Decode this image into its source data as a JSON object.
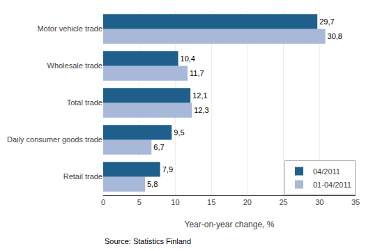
{
  "chart_data": {
    "type": "bar",
    "orientation": "horizontal",
    "categories": [
      "Retail trade",
      "Daily consumer goods trade",
      "Total trade",
      "Wholesale trade",
      "Motor vehicle trade"
    ],
    "series": [
      {
        "name": "04/2011",
        "color": "#1f5f8b",
        "values": [
          7.9,
          9.5,
          12.1,
          10.4,
          29.7
        ],
        "value_labels": [
          "7,9",
          "9,5",
          "12,1",
          "10,4",
          "29,7"
        ]
      },
      {
        "name": "01-04/2011",
        "color": "#a8b8d8",
        "values": [
          5.8,
          6.7,
          12.3,
          11.7,
          30.8
        ],
        "value_labels": [
          "5,8",
          "6,7",
          "12,3",
          "11,7",
          "30,8"
        ]
      }
    ],
    "x_label": "Year-on-year change, %",
    "xlim": [
      0,
      35
    ],
    "xticks": [
      0,
      5,
      10,
      15,
      20,
      25,
      30,
      35
    ],
    "grid": "x",
    "legend": "lower right",
    "data_labels": true,
    "annotations": [
      "Source: Statistics Finland"
    ]
  }
}
